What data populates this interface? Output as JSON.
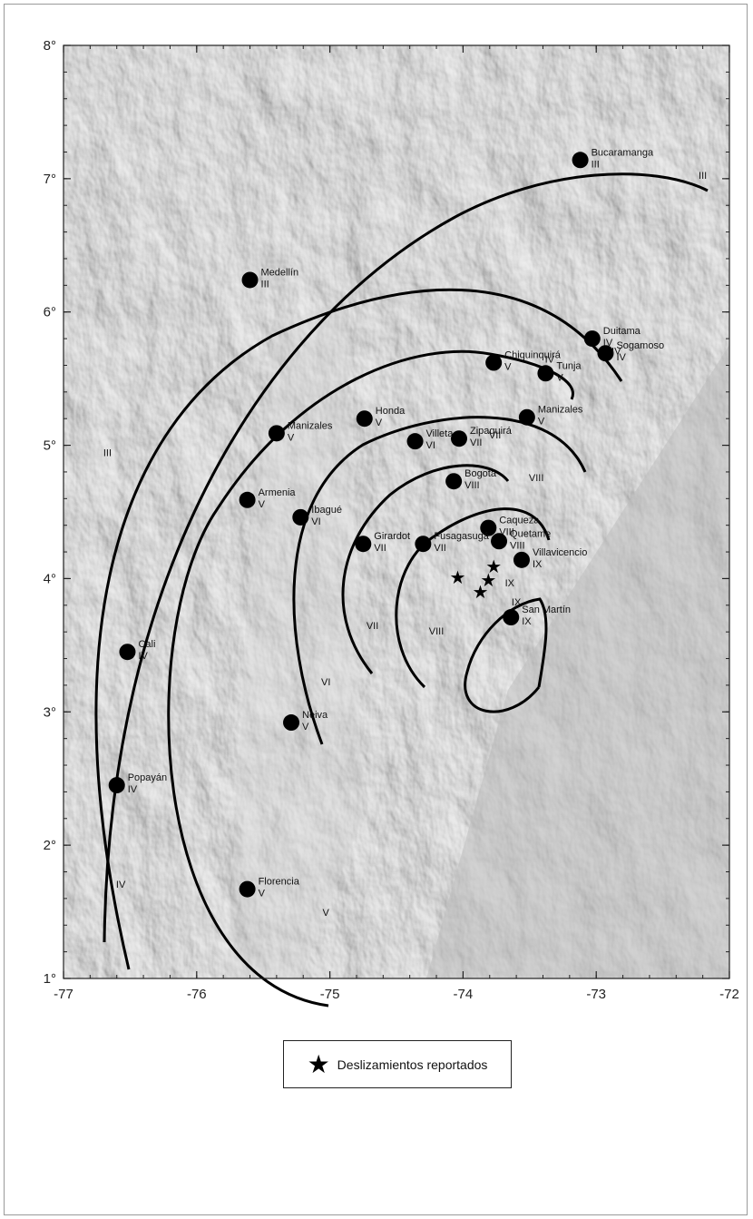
{
  "axes": {
    "x_ticks": [
      "-77",
      "-76",
      "-75",
      "-74",
      "-73",
      "-72"
    ],
    "y_ticks": [
      "1°",
      "2°",
      "3°",
      "4°",
      "5°",
      "6°",
      "7°",
      "8°"
    ],
    "lon_range": [
      -77,
      -72
    ],
    "lat_range": [
      1,
      8
    ]
  },
  "colors": {
    "relief_base": "#c8c8c8",
    "line": "#000000",
    "text": "#111111"
  },
  "cities": [
    {
      "name": "Bucaramanga",
      "intensity": "III",
      "lon": -73.12,
      "lat": 7.14
    },
    {
      "name": "Medellín",
      "intensity": "III",
      "lon": -75.6,
      "lat": 6.24
    },
    {
      "name": "Duitama",
      "intensity": "IV",
      "lon": -73.03,
      "lat": 5.8
    },
    {
      "name": "Sogamoso",
      "intensity": "IV",
      "lon": -72.93,
      "lat": 5.69
    },
    {
      "name": "Chiquinquirá",
      "intensity": "V",
      "lon": -73.77,
      "lat": 5.62
    },
    {
      "name": "Tunja",
      "intensity": "V",
      "lon": -73.38,
      "lat": 5.54
    },
    {
      "name": "Honda",
      "intensity": "V",
      "lon": -74.74,
      "lat": 5.2
    },
    {
      "name": "Manizales",
      "intensity": "V",
      "lon": -75.4,
      "lat": 5.09
    },
    {
      "name": "Manizales",
      "intensity": "V",
      "lon": -73.52,
      "lat": 5.21
    },
    {
      "name": "Villeta",
      "intensity": "VI",
      "lon": -74.36,
      "lat": 5.03
    },
    {
      "name": "Zipaquirá",
      "intensity": "VII",
      "lon": -74.03,
      "lat": 5.05
    },
    {
      "name": "Bogotá",
      "intensity": "VIII",
      "lon": -74.07,
      "lat": 4.73
    },
    {
      "name": "Armenia",
      "intensity": "V",
      "lon": -75.62,
      "lat": 4.59
    },
    {
      "name": "Ibagué",
      "intensity": "VI",
      "lon": -75.22,
      "lat": 4.46
    },
    {
      "name": "Caqueza",
      "intensity": "VIII",
      "lon": -73.81,
      "lat": 4.38
    },
    {
      "name": "Quetame",
      "intensity": "VIII",
      "lon": -73.73,
      "lat": 4.28
    },
    {
      "name": "Girardot",
      "intensity": "VII",
      "lon": -74.75,
      "lat": 4.26
    },
    {
      "name": "Fusagasugá",
      "intensity": "VII",
      "lon": -74.3,
      "lat": 4.26
    },
    {
      "name": "Villavicencio",
      "intensity": "IX",
      "lon": -73.56,
      "lat": 4.14
    },
    {
      "name": "San Martín",
      "intensity": "IX",
      "lon": -73.64,
      "lat": 3.71
    },
    {
      "name": "Cali",
      "intensity": "IV",
      "lon": -76.52,
      "lat": 3.45
    },
    {
      "name": "Neiva",
      "intensity": "V",
      "lon": -75.29,
      "lat": 2.92
    },
    {
      "name": "Popayán",
      "intensity": "IV",
      "lon": -76.6,
      "lat": 2.45
    },
    {
      "name": "Florencia",
      "intensity": "V",
      "lon": -75.62,
      "lat": 1.67
    }
  ],
  "isoseismals": [
    {
      "label": "IX",
      "label_lon": -73.6,
      "label_lat": 3.8
    },
    {
      "label": "VIII",
      "label_lon": -74.2,
      "label_lat": 3.58
    },
    {
      "label": "VII",
      "label_lon": -74.68,
      "label_lat": 3.62
    },
    {
      "label": "VI",
      "label_lon": -75.03,
      "label_lat": 3.2
    },
    {
      "label": "V",
      "label_lon": -75.03,
      "label_lat": 1.47
    },
    {
      "label": "IV",
      "label_lon": -76.57,
      "label_lat": 1.68
    },
    {
      "label": "III",
      "label_lon": -76.67,
      "label_lat": 4.92
    }
  ],
  "extra_labels": [
    {
      "text": "III",
      "lon": -72.2,
      "lat": 7.0
    },
    {
      "text": "IV",
      "lon": -72.85,
      "lat": 5.68
    },
    {
      "text": "IV",
      "lon": -73.35,
      "lat": 5.62
    },
    {
      "text": "VII",
      "lon": -73.76,
      "lat": 5.05
    },
    {
      "text": "VIII",
      "lon": -73.45,
      "lat": 4.73
    },
    {
      "text": "IX",
      "lon": -73.65,
      "lat": 3.94
    }
  ],
  "landslides": [
    {
      "lon": -74.04,
      "lat": 4.01
    },
    {
      "lon": -73.77,
      "lat": 4.09
    },
    {
      "lon": -73.81,
      "lat": 3.99
    },
    {
      "lon": -73.87,
      "lat": 3.9
    }
  ],
  "legend": {
    "icon": "star-icon",
    "label": "Deslizamientos reportados"
  }
}
